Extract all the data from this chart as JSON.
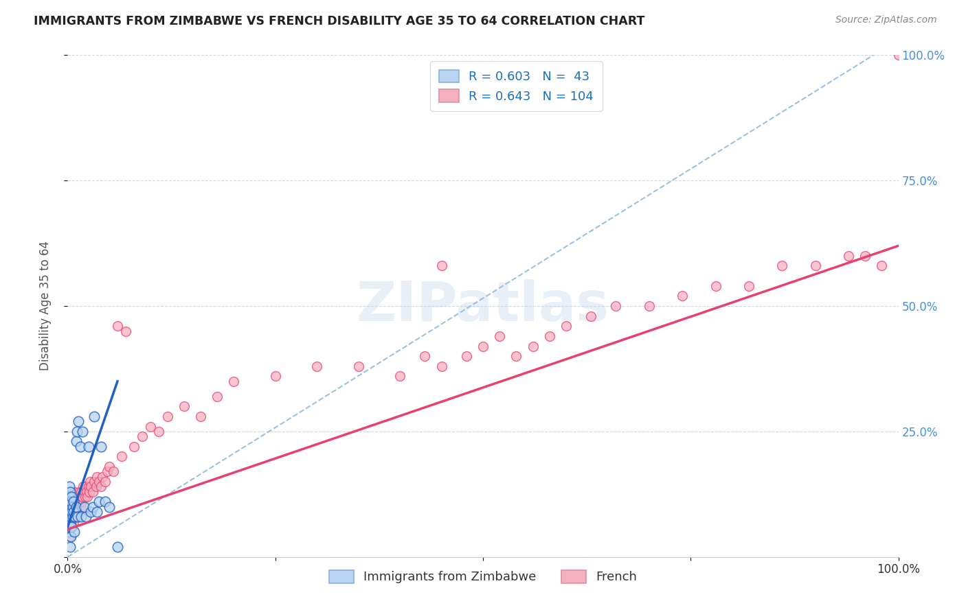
{
  "title": "IMMIGRANTS FROM ZIMBABWE VS FRENCH DISABILITY AGE 35 TO 64 CORRELATION CHART",
  "source": "Source: ZipAtlas.com",
  "ylabel": "Disability Age 35 to 64",
  "xlim": [
    0,
    1.0
  ],
  "ylim": [
    0,
    1.0
  ],
  "blue_color": "#b8d4f0",
  "pink_color": "#f5b0c0",
  "blue_line_color": "#2060c0",
  "pink_line_color": "#e84070",
  "dashed_line_color": "#90bcd8",
  "legend_R1": "R = 0.603",
  "legend_N1": "N =  43",
  "legend_R2": "R = 0.643",
  "legend_N2": "N = 104",
  "legend_label1": "Immigrants from Zimbabwe",
  "legend_label2": "French",
  "watermark": "ZIPatlas",
  "blue_scatter_x": [
    0.001,
    0.001,
    0.001,
    0.002,
    0.002,
    0.002,
    0.002,
    0.003,
    0.003,
    0.003,
    0.003,
    0.004,
    0.004,
    0.004,
    0.005,
    0.005,
    0.005,
    0.006,
    0.006,
    0.007,
    0.007,
    0.008,
    0.009,
    0.01,
    0.01,
    0.011,
    0.012,
    0.013,
    0.015,
    0.016,
    0.018,
    0.02,
    0.022,
    0.025,
    0.028,
    0.03,
    0.032,
    0.035,
    0.038,
    0.04,
    0.045,
    0.05,
    0.06
  ],
  "blue_scatter_y": [
    0.05,
    0.08,
    0.12,
    0.06,
    0.09,
    0.11,
    0.14,
    0.07,
    0.1,
    0.13,
    0.02,
    0.08,
    0.11,
    0.04,
    0.09,
    0.12,
    0.06,
    0.08,
    0.1,
    0.09,
    0.11,
    0.05,
    0.08,
    0.1,
    0.23,
    0.25,
    0.08,
    0.27,
    0.22,
    0.08,
    0.25,
    0.1,
    0.08,
    0.22,
    0.09,
    0.1,
    0.28,
    0.09,
    0.11,
    0.22,
    0.11,
    0.1,
    0.02
  ],
  "pink_scatter_x": [
    0.001,
    0.001,
    0.001,
    0.002,
    0.002,
    0.002,
    0.002,
    0.003,
    0.003,
    0.003,
    0.003,
    0.004,
    0.004,
    0.004,
    0.004,
    0.005,
    0.005,
    0.005,
    0.006,
    0.006,
    0.006,
    0.007,
    0.007,
    0.007,
    0.008,
    0.008,
    0.008,
    0.009,
    0.009,
    0.01,
    0.01,
    0.011,
    0.011,
    0.012,
    0.012,
    0.013,
    0.013,
    0.014,
    0.014,
    0.015,
    0.015,
    0.016,
    0.016,
    0.017,
    0.018,
    0.019,
    0.02,
    0.021,
    0.022,
    0.023,
    0.024,
    0.025,
    0.026,
    0.027,
    0.028,
    0.03,
    0.032,
    0.034,
    0.035,
    0.038,
    0.04,
    0.042,
    0.045,
    0.048,
    0.05,
    0.055,
    0.06,
    0.065,
    0.07,
    0.08,
    0.09,
    0.1,
    0.11,
    0.12,
    0.14,
    0.16,
    0.18,
    0.2,
    0.25,
    0.3,
    0.35,
    0.4,
    0.43,
    0.45,
    0.48,
    0.5,
    0.52,
    0.54,
    0.56,
    0.58,
    0.6,
    0.63,
    0.66,
    0.7,
    0.74,
    0.78,
    0.82,
    0.86,
    0.9,
    0.94,
    0.96,
    0.98,
    1.0,
    0.45
  ],
  "pink_scatter_y": [
    0.05,
    0.08,
    0.11,
    0.06,
    0.09,
    0.1,
    0.12,
    0.07,
    0.09,
    0.11,
    0.04,
    0.08,
    0.1,
    0.06,
    0.13,
    0.07,
    0.09,
    0.11,
    0.08,
    0.1,
    0.12,
    0.07,
    0.09,
    0.11,
    0.08,
    0.1,
    0.13,
    0.09,
    0.11,
    0.08,
    0.1,
    0.09,
    0.11,
    0.1,
    0.12,
    0.09,
    0.11,
    0.1,
    0.13,
    0.11,
    0.12,
    0.1,
    0.13,
    0.11,
    0.12,
    0.14,
    0.13,
    0.12,
    0.14,
    0.13,
    0.12,
    0.14,
    0.13,
    0.15,
    0.14,
    0.13,
    0.15,
    0.14,
    0.16,
    0.15,
    0.14,
    0.16,
    0.15,
    0.17,
    0.18,
    0.17,
    0.46,
    0.2,
    0.45,
    0.22,
    0.24,
    0.26,
    0.25,
    0.28,
    0.3,
    0.28,
    0.32,
    0.35,
    0.36,
    0.38,
    0.38,
    0.36,
    0.4,
    0.38,
    0.4,
    0.42,
    0.44,
    0.4,
    0.42,
    0.44,
    0.46,
    0.48,
    0.5,
    0.5,
    0.52,
    0.54,
    0.54,
    0.58,
    0.58,
    0.6,
    0.6,
    0.58,
    1.0,
    0.58
  ],
  "blue_regline": [
    0.0,
    0.06,
    0.35
  ],
  "pink_regline_x": [
    0.0,
    1.0
  ],
  "pink_regline_y": [
    0.055,
    0.62
  ],
  "dashed_line_x": [
    0.0,
    0.97
  ],
  "dashed_line_y": [
    0.0,
    1.0
  ]
}
